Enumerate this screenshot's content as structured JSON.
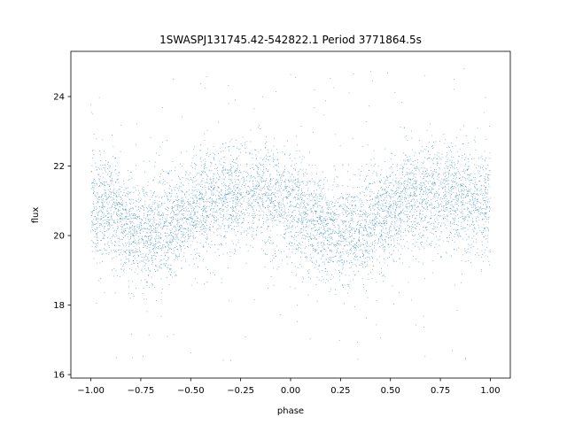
{
  "chart_data": {
    "type": "scatter",
    "title": "1SWASPJ131745.42-542822.1 Period 3771864.5s",
    "xlabel": "phase",
    "ylabel": "flux",
    "xlim": [
      -1.1,
      1.1
    ],
    "ylim": [
      15.9,
      25.3
    ],
    "xticks": [
      -1.0,
      -0.75,
      -0.5,
      -0.25,
      0.0,
      0.25,
      0.5,
      0.75,
      1.0
    ],
    "xtick_labels": [
      "−1.00",
      "−0.75",
      "−0.50",
      "−0.25",
      "0.00",
      "0.25",
      "0.50",
      "0.75",
      "1.00"
    ],
    "yticks": [
      16,
      18,
      20,
      22,
      24
    ],
    "ytick_labels": [
      "16",
      "18",
      "20",
      "22",
      "24"
    ],
    "grid": false,
    "marker_color": "#1f77b4",
    "phase_profile": {
      "phase": [
        -1.0,
        -0.95,
        -0.9,
        -0.85,
        -0.8,
        -0.75,
        -0.7,
        -0.65,
        -0.6,
        -0.55,
        -0.5,
        -0.45,
        -0.4,
        -0.35,
        -0.3,
        -0.25,
        -0.2,
        -0.15,
        -0.1,
        -0.05,
        0.0,
        0.05,
        0.1,
        0.15,
        0.2,
        0.25,
        0.3,
        0.35,
        0.4,
        0.45,
        0.5,
        0.55,
        0.6,
        0.65,
        0.7,
        0.75,
        0.8,
        0.85,
        0.9,
        0.95,
        1.0
      ],
      "median_flux": [
        20.7,
        20.8,
        20.8,
        20.5,
        20.2,
        20.0,
        20.1,
        20.3,
        20.4,
        20.5,
        20.6,
        20.8,
        21.0,
        21.1,
        21.2,
        21.2,
        21.2,
        21.2,
        21.1,
        21.0,
        20.9,
        20.7,
        20.5,
        20.3,
        20.1,
        20.0,
        20.1,
        20.2,
        20.4,
        20.5,
        20.7,
        20.8,
        21.0,
        21.1,
        21.2,
        21.2,
        21.2,
        21.1,
        21.0,
        20.9,
        20.8
      ],
      "spread": 0.75
    },
    "n_points": 6500
  }
}
